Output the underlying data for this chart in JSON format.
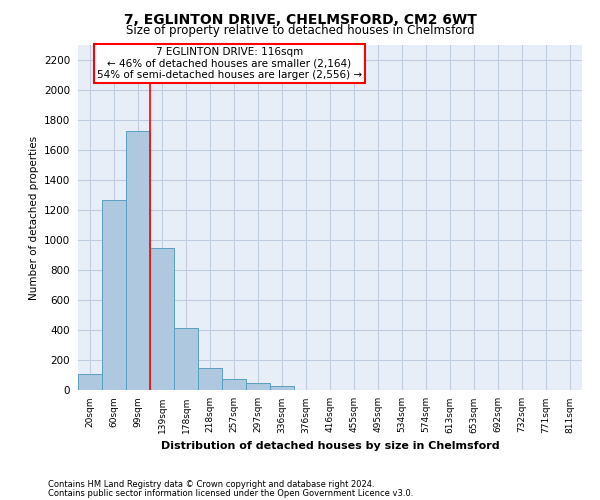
{
  "title": "7, EGLINTON DRIVE, CHELMSFORD, CM2 6WT",
  "subtitle": "Size of property relative to detached houses in Chelmsford",
  "xlabel": "Distribution of detached houses by size in Chelmsford",
  "ylabel": "Number of detached properties",
  "footnote1": "Contains HM Land Registry data © Crown copyright and database right 2024.",
  "footnote2": "Contains public sector information licensed under the Open Government Licence v3.0.",
  "bar_values": [
    105,
    1270,
    1730,
    950,
    415,
    150,
    75,
    45,
    25,
    0,
    0,
    0,
    0,
    0,
    0,
    0,
    0,
    0,
    0,
    0,
    0
  ],
  "bar_labels": [
    "20sqm",
    "60sqm",
    "99sqm",
    "139sqm",
    "178sqm",
    "218sqm",
    "257sqm",
    "297sqm",
    "336sqm",
    "376sqm",
    "416sqm",
    "455sqm",
    "495sqm",
    "534sqm",
    "574sqm",
    "613sqm",
    "653sqm",
    "692sqm",
    "732sqm",
    "771sqm",
    "811sqm"
  ],
  "bar_color": "#aec8e0",
  "bar_edge_color": "#5a9fc0",
  "grid_color": "#c0cce0",
  "background_color": "#e8eef8",
  "annotation_text": "7 EGLINTON DRIVE: 116sqm\n← 46% of detached houses are smaller (2,164)\n54% of semi-detached houses are larger (2,556) →",
  "red_line_x": 2.5,
  "ylim": [
    0,
    2300
  ],
  "yticks": [
    0,
    200,
    400,
    600,
    800,
    1000,
    1200,
    1400,
    1600,
    1800,
    2000,
    2200
  ],
  "figwidth": 6.0,
  "figheight": 5.0,
  "dpi": 100
}
